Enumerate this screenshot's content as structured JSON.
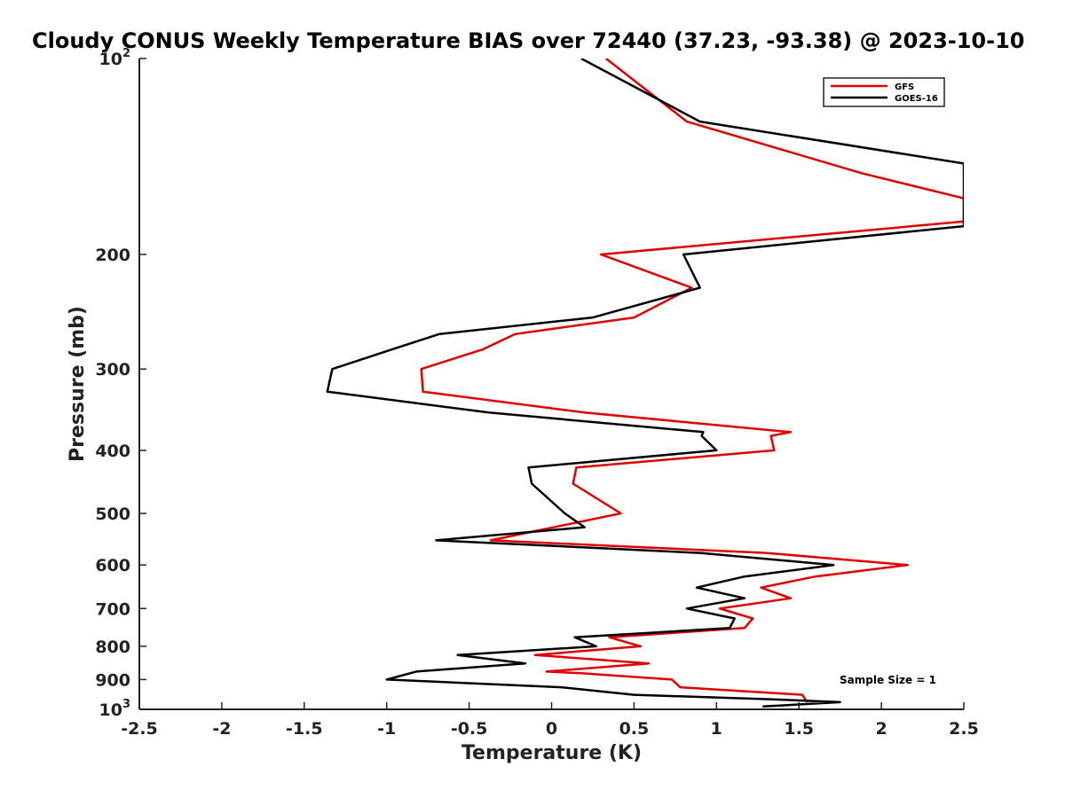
{
  "chart_data": {
    "type": "line",
    "title": "Cloudy CONUS Weekly Temperature BIAS over 72440 (37.23, -93.38) @ 2023-10-10",
    "xlabel": "Temperature (K)",
    "ylabel": "Pressure (mb)",
    "xlim": [
      -2.5,
      2.5
    ],
    "ylim": [
      100,
      1000
    ],
    "y_scale": "log",
    "y_reversed": true,
    "x_ticks": [
      {
        "value": -2.5,
        "label": "-2.5"
      },
      {
        "value": -2,
        "label": "-2"
      },
      {
        "value": -1.5,
        "label": "-1.5"
      },
      {
        "value": -1,
        "label": "-1"
      },
      {
        "value": -0.5,
        "label": "-0.5"
      },
      {
        "value": 0,
        "label": "0"
      },
      {
        "value": 0.5,
        "label": "0.5"
      },
      {
        "value": 1,
        "label": "1"
      },
      {
        "value": 1.5,
        "label": "1.5"
      },
      {
        "value": 2,
        "label": "2"
      },
      {
        "value": 2.5,
        "label": "2.5"
      }
    ],
    "y_ticks": [
      {
        "value": 100,
        "base": "10",
        "exp": "2"
      },
      {
        "value": 200,
        "label": "200"
      },
      {
        "value": 300,
        "label": "300"
      },
      {
        "value": 400,
        "label": "400"
      },
      {
        "value": 500,
        "label": "500"
      },
      {
        "value": 600,
        "label": "600"
      },
      {
        "value": 700,
        "label": "700"
      },
      {
        "value": 800,
        "label": "800"
      },
      {
        "value": 900,
        "label": "900"
      },
      {
        "value": 1000,
        "base": "10",
        "exp": "3"
      }
    ],
    "grid": false,
    "legend_position": "top-right",
    "annotation": "Sample Size = 1",
    "series": [
      {
        "name": "GFS",
        "color": "#e00000",
        "points": [
          [
            0.33,
            100
          ],
          [
            0.82,
            125
          ],
          [
            1.88,
            150
          ],
          [
            2.5,
            164
          ],
          [
            2.5,
            175
          ],
          [
            2.5,
            178
          ],
          [
            0.3,
            200
          ],
          [
            0.85,
            225
          ],
          [
            0.5,
            250
          ],
          [
            -0.22,
            265
          ],
          [
            -0.42,
            280
          ],
          [
            -0.79,
            300
          ],
          [
            -0.78,
            325
          ],
          [
            0.2,
            350
          ],
          [
            1.45,
            375
          ],
          [
            1.33,
            380
          ],
          [
            1.35,
            400
          ],
          [
            0.15,
            425
          ],
          [
            0.13,
            450
          ],
          [
            0.42,
            500
          ],
          [
            -0.37,
            550
          ],
          [
            1.3,
            575
          ],
          [
            2.16,
            600
          ],
          [
            1.6,
            625
          ],
          [
            1.27,
            650
          ],
          [
            1.45,
            675
          ],
          [
            1.02,
            700
          ],
          [
            1.22,
            725
          ],
          [
            1.17,
            750
          ],
          [
            0.35,
            775
          ],
          [
            0.54,
            800
          ],
          [
            -0.1,
            825
          ],
          [
            0.59,
            850
          ],
          [
            -0.03,
            875
          ],
          [
            0.18,
            880
          ],
          [
            0.73,
            900
          ],
          [
            0.78,
            925
          ],
          [
            1.52,
            950
          ],
          [
            1.55,
            975
          ]
        ]
      },
      {
        "name": "GOES-16",
        "color": "#000000",
        "points": [
          [
            0.18,
            100
          ],
          [
            0.9,
            125
          ],
          [
            2.5,
            145
          ],
          [
            2.5,
            175
          ],
          [
            2.5,
            181
          ],
          [
            0.8,
            200
          ],
          [
            0.9,
            225
          ],
          [
            0.25,
            250
          ],
          [
            -0.68,
            265
          ],
          [
            -0.97,
            280
          ],
          [
            -1.33,
            300
          ],
          [
            -1.36,
            325
          ],
          [
            -0.38,
            350
          ],
          [
            0.92,
            375
          ],
          [
            0.91,
            380
          ],
          [
            1.0,
            400
          ],
          [
            -0.14,
            425
          ],
          [
            -0.12,
            450
          ],
          [
            0.08,
            500
          ],
          [
            0.2,
            525
          ],
          [
            -0.7,
            550
          ],
          [
            0.9,
            575
          ],
          [
            1.71,
            600
          ],
          [
            1.17,
            625
          ],
          [
            0.88,
            650
          ],
          [
            1.17,
            675
          ],
          [
            0.82,
            700
          ],
          [
            1.11,
            725
          ],
          [
            1.08,
            750
          ],
          [
            0.14,
            775
          ],
          [
            0.27,
            800
          ],
          [
            -0.57,
            825
          ],
          [
            -0.16,
            850
          ],
          [
            -0.82,
            875
          ],
          [
            -1.0,
            900
          ],
          [
            0.06,
            925
          ],
          [
            0.5,
            950
          ],
          [
            1.32,
            965
          ],
          [
            1.75,
            975
          ],
          [
            1.28,
            990
          ]
        ]
      }
    ]
  }
}
